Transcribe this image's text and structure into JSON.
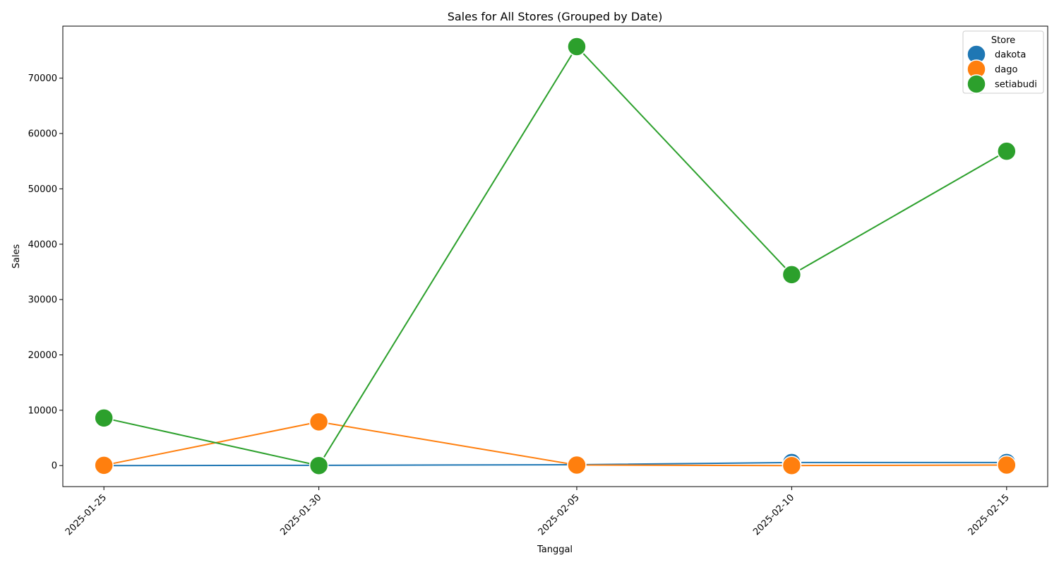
{
  "chart_data": {
    "type": "line",
    "title": "Sales for All Stores (Grouped by Date)",
    "xlabel": "Tanggal",
    "ylabel": "Sales",
    "x": [
      "2025-01-25",
      "2025-01-30",
      "2025-02-05",
      "2025-02-10",
      "2025-02-15"
    ],
    "yticks": [
      0,
      10000,
      20000,
      30000,
      40000,
      50000,
      60000,
      70000
    ],
    "ylim": [
      -3800,
      79400
    ],
    "grid": false,
    "legend": {
      "title": "Store",
      "placement": "top-right"
    },
    "series": [
      {
        "name": "dakota",
        "color": "#1f77b4",
        "values": [
          0,
          50,
          150,
          550,
          550
        ]
      },
      {
        "name": "dago",
        "color": "#ff7f0e",
        "values": [
          50,
          7900,
          100,
          0,
          100
        ]
      },
      {
        "name": "setiabudi",
        "color": "#2ca02c",
        "values": [
          8600,
          0,
          75700,
          34500,
          56800
        ]
      }
    ]
  }
}
